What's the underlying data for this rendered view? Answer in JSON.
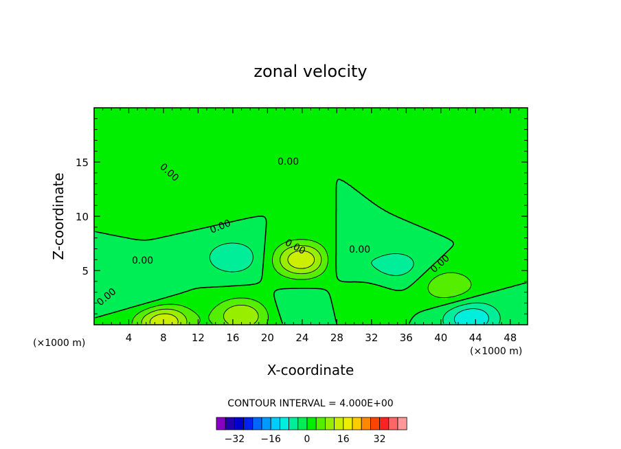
{
  "chart_data": {
    "type": "heatmap",
    "title": "zonal velocity",
    "xlabel": "X-coordinate",
    "ylabel": "Z-coordinate",
    "x_unit_label": "(×1000 m)",
    "x_ticks": [
      4,
      8,
      12,
      16,
      20,
      24,
      28,
      32,
      36,
      40,
      44,
      48
    ],
    "y_ticks": [
      5,
      10,
      15
    ],
    "xlim": [
      0,
      50
    ],
    "ylim": [
      0,
      20
    ],
    "contour_interval_text": "CONTOUR INTERVAL = 4.000E+00",
    "contour_label": "0.00",
    "colorbar_ticks": [
      -32,
      -16,
      0,
      16,
      32
    ],
    "colorbar_colors": [
      "#8800c0",
      "#2200aa",
      "#0000cc",
      "#0022ee",
      "#0066ff",
      "#0099ff",
      "#00ccff",
      "#00eedd",
      "#00ee99",
      "#00ee55",
      "#00ee00",
      "#55ee00",
      "#99ee00",
      "#ccee00",
      "#eeee00",
      "#ffcc00",
      "#ff8800",
      "#ff4400",
      "#ff2222",
      "#ff6666",
      "#ff9999"
    ],
    "levels_min": -40,
    "levels_step": 4,
    "features": [
      {
        "x": 8,
        "z": 0.3,
        "value": 16
      },
      {
        "x": 17,
        "z": 0.8,
        "value": 12
      },
      {
        "x": 24,
        "z": 6,
        "value": 16
      },
      {
        "x": 16,
        "z": 6.2,
        "value": -8
      },
      {
        "x": 6,
        "z": 2.5,
        "value": -4
      },
      {
        "x": 41,
        "z": 3.5,
        "value": 8
      },
      {
        "x": 43.5,
        "z": 0.6,
        "value": -12
      },
      {
        "x": 35,
        "z": 5.5,
        "value": -6
      },
      {
        "x": 29,
        "z": 6,
        "value": -4
      },
      {
        "x": 12,
        "z": 11.8,
        "value": 4
      },
      {
        "x": 43,
        "z": 11.5,
        "value": 4
      },
      {
        "x": 31,
        "z": 2,
        "value": 4
      },
      {
        "x": 24,
        "z": 1.5,
        "value": -4
      }
    ]
  }
}
